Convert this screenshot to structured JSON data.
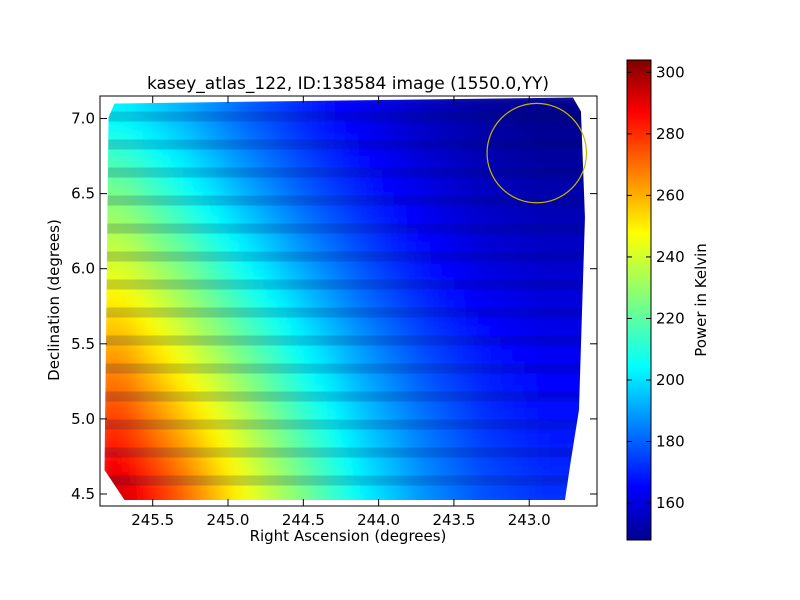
{
  "chart_data": {
    "type": "heatmap",
    "title": "kasey_atlas_122, ID:138584 image (1550.0,YY)",
    "xlabel": "Right Ascension (degrees)",
    "ylabel": "Declination (degrees)",
    "xlim": [
      245.85,
      242.55
    ],
    "ylim": [
      4.42,
      7.15
    ],
    "x_ticks": [
      245.5,
      245.0,
      244.5,
      244.0,
      243.5,
      243.0
    ],
    "x_tick_labels": [
      "245.5",
      "245.0",
      "244.5",
      "244.0",
      "243.5",
      "243.0"
    ],
    "y_ticks": [
      4.5,
      5.0,
      5.5,
      6.0,
      6.5,
      7.0
    ],
    "y_tick_labels": [
      "4.5",
      "5.0",
      "5.5",
      "6.0",
      "6.5",
      "7.0"
    ],
    "colorbar": {
      "label": "Power in Kelvin",
      "colormap": "jet",
      "range": [
        148,
        304
      ],
      "ticks": [
        160,
        180,
        200,
        220,
        240,
        260,
        280,
        300
      ],
      "tick_labels": [
        "160",
        "180",
        "200",
        "220",
        "240",
        "260",
        "280",
        "300"
      ]
    },
    "map_bounds": {
      "ra_left": 245.82,
      "ra_right": 242.63,
      "dec_bottom": 4.46,
      "dec_top": 7.14
    },
    "grid_samples": {
      "ra": [
        245.7,
        245.3,
        244.9,
        244.5,
        244.1,
        243.7,
        243.3,
        242.9
      ],
      "dec": [
        4.5,
        5.0,
        5.5,
        6.0,
        6.5,
        7.0
      ],
      "values": [
        [
          292,
          270,
          245,
          225,
          205,
          190,
          180,
          175
        ],
        [
          275,
          255,
          235,
          215,
          198,
          185,
          175,
          170
        ],
        [
          258,
          240,
          222,
          205,
          190,
          178,
          170,
          165
        ],
        [
          240,
          225,
          208,
          193,
          180,
          170,
          163,
          160
        ],
        [
          225,
          210,
          195,
          182,
          172,
          164,
          158,
          155
        ],
        [
          205,
          195,
          183,
          173,
          165,
          158,
          153,
          150
        ]
      ]
    },
    "circle": {
      "center_ra": 242.95,
      "center_dec": 6.77,
      "radius_deg": 0.33,
      "color": "#c8b400"
    },
    "grid": false,
    "legend": "none"
  }
}
